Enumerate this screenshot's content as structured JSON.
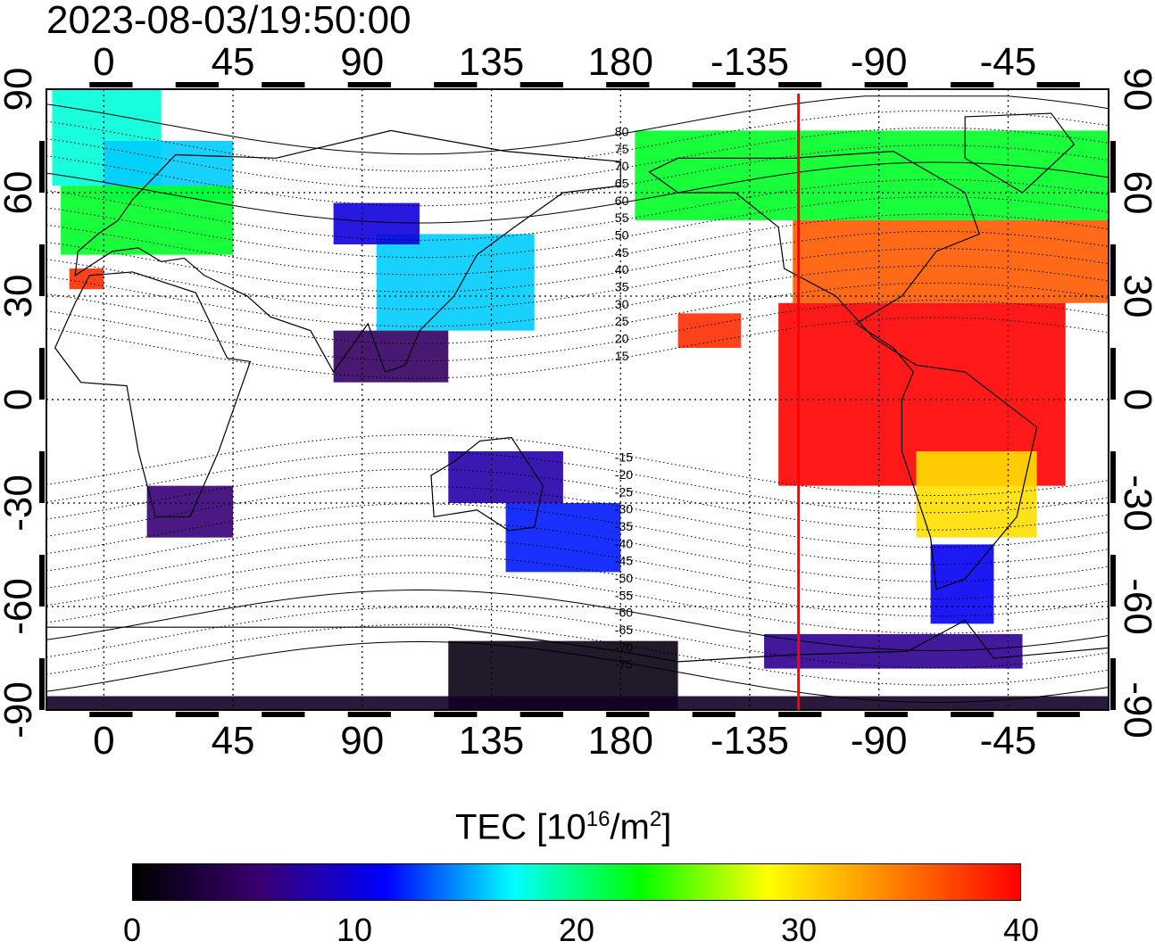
{
  "title": "2023-08-03/19:50:00",
  "map": {
    "projection": "equirectangular",
    "lon_range": [
      -20,
      350
    ],
    "lat_range": [
      -90,
      90
    ],
    "lon_ticks": [
      {
        "value": 0,
        "label": "0"
      },
      {
        "value": 45,
        "label": "45"
      },
      {
        "value": 90,
        "label": "90"
      },
      {
        "value": 135,
        "label": "135"
      },
      {
        "value": 180,
        "label": "180"
      },
      {
        "value": 225,
        "label": "-135"
      },
      {
        "value": 270,
        "label": "-90"
      },
      {
        "value": 315,
        "label": "-45"
      }
    ],
    "lat_ticks": [
      {
        "value": 90,
        "label": "90"
      },
      {
        "value": 60,
        "label": "60"
      },
      {
        "value": 30,
        "label": "30"
      },
      {
        "value": 0,
        "label": "0"
      },
      {
        "value": -30,
        "label": "-30"
      },
      {
        "value": -60,
        "label": "-60"
      },
      {
        "value": -90,
        "label": "-90"
      }
    ],
    "terminator_lon": -118,
    "terminator_color": "#ff0000",
    "magnetic_contour_labels": [
      "80",
      "75",
      "70",
      "65",
      "60",
      "55",
      "50",
      "45",
      "40",
      "35",
      "30",
      "25",
      "20",
      "15",
      "-15",
      "-20",
      "-25",
      "-30",
      "-35",
      "-40",
      "-45",
      "-50",
      "-55",
      "-60",
      "-65",
      "-70",
      "-75"
    ],
    "magnetic_contour_lats": [
      80,
      75,
      70,
      65,
      60,
      55,
      50,
      45,
      40,
      35,
      30,
      25,
      20,
      15,
      -15,
      -20,
      -25,
      -30,
      -35,
      -40,
      -45,
      -50,
      -55,
      -60,
      -65,
      -70,
      -75
    ]
  },
  "tec_regions": [
    {
      "lon": [
        -18,
        20
      ],
      "lat": [
        62,
        90
      ],
      "tec": 18
    },
    {
      "lon": [
        0,
        45
      ],
      "lat": [
        58,
        75
      ],
      "tec": 16
    },
    {
      "lon": [
        -15,
        45
      ],
      "lat": [
        42,
        62
      ],
      "tec": 22
    },
    {
      "lon": [
        -12,
        0
      ],
      "lat": [
        32,
        38
      ],
      "tec": 38
    },
    {
      "lon": [
        95,
        150
      ],
      "lat": [
        20,
        48
      ],
      "tec": 16
    },
    {
      "lon": [
        80,
        110
      ],
      "lat": [
        45,
        57
      ],
      "tec": 10
    },
    {
      "lon": [
        80,
        120
      ],
      "lat": [
        5,
        20
      ],
      "tec": 5
    },
    {
      "lon": [
        15,
        45
      ],
      "lat": [
        -40,
        -25
      ],
      "tec": 6
    },
    {
      "lon": [
        140,
        180
      ],
      "lat": [
        -50,
        -30
      ],
      "tec": 12
    },
    {
      "lon": [
        120,
        160
      ],
      "lat": [
        -30,
        -15
      ],
      "tec": 8
    },
    {
      "lon": [
        185,
        360
      ],
      "lat": [
        52,
        78
      ],
      "tec": 22
    },
    {
      "lon": [
        240,
        355
      ],
      "lat": [
        28,
        52
      ],
      "tec": 36
    },
    {
      "lon": [
        235,
        335
      ],
      "lat": [
        -25,
        28
      ],
      "tec": 40
    },
    {
      "lon": [
        283,
        325
      ],
      "lat": [
        -40,
        -15
      ],
      "tec": 30
    },
    {
      "lon": [
        288,
        310
      ],
      "lat": [
        -65,
        -42
      ],
      "tec": 11
    },
    {
      "lon": [
        200,
        222
      ],
      "lat": [
        15,
        25
      ],
      "tec": 38
    },
    {
      "lon": [
        120,
        200
      ],
      "lat": [
        -90,
        -70
      ],
      "tec": 1
    },
    {
      "lon": [
        -20,
        350
      ],
      "lat": [
        -90,
        -86
      ],
      "tec": 2
    },
    {
      "lon": [
        230,
        320
      ],
      "lat": [
        -78,
        -68
      ],
      "tec": 7
    }
  ],
  "colorbar": {
    "title_main": "TEC  [10",
    "title_exp": "16",
    "title_unit": "/m",
    "title_unit_exp": "2",
    "title_close": "]",
    "min": 0,
    "max": 40,
    "ticks": [
      {
        "value": 0,
        "label": "0"
      },
      {
        "value": 10,
        "label": "10"
      },
      {
        "value": 20,
        "label": "20"
      },
      {
        "value": 30,
        "label": "30"
      },
      {
        "value": 40,
        "label": "40"
      }
    ],
    "colors": [
      "#000000",
      "#3a0070",
      "#0000ff",
      "#00ffff",
      "#00ff00",
      "#ffff00",
      "#ff8000",
      "#ff0000"
    ]
  }
}
